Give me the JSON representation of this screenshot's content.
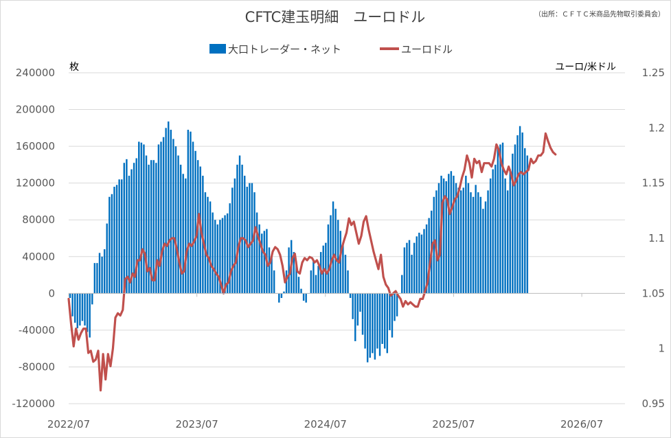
{
  "chart_data": {
    "type": "bar",
    "title": "CFTC建玉明細　ユーロドル",
    "source": "（出所：ＣＦＴＣ米商品先物取引委員会）",
    "left_unit": "枚",
    "right_unit": "ユーロ/米ドル",
    "grid": true,
    "legend_position": "top",
    "y_left": {
      "min": -120000,
      "max": 240000,
      "ticks": [
        240000,
        200000,
        160000,
        120000,
        80000,
        40000,
        0,
        -40000,
        -80000,
        -120000
      ],
      "tick_labels": [
        "240000",
        "200000",
        "160000",
        "120000",
        "80000",
        "40000",
        "0",
        "-40000",
        "-80000",
        "-120000"
      ]
    },
    "y_right": {
      "min": 0.95,
      "max": 1.25,
      "ticks": [
        1.25,
        1.2,
        1.15,
        1.1,
        1.05,
        1,
        0.95
      ],
      "tick_labels": [
        "1.25",
        "1.2",
        "1.15",
        "1.1",
        "1.05",
        "1",
        "0.95"
      ]
    },
    "x_axis": {
      "start": "2022-07",
      "end": "2026-11",
      "tick_labels": [
        "2022/07",
        "2023/07",
        "2024/07",
        "2025/07",
        "2026/07"
      ]
    },
    "colors": {
      "bars": "#0070C0",
      "line": "#C0504D",
      "grid": "#D9D9D9"
    },
    "series": [
      {
        "name": "大口トレーダー・ネット",
        "kind": "bar",
        "axis": "left",
        "start": "2022-07-05",
        "interval_days": 7,
        "values": [
          -5000,
          -25000,
          -32000,
          -38000,
          -35000,
          -30000,
          -35000,
          -42000,
          -48000,
          -12000,
          33000,
          33000,
          44000,
          40000,
          48000,
          76000,
          105000,
          108000,
          116000,
          118000,
          124000,
          124000,
          142000,
          146000,
          128000,
          135000,
          142000,
          147000,
          165000,
          164000,
          162000,
          150000,
          140000,
          145000,
          145000,
          142000,
          162000,
          165000,
          170000,
          180000,
          187000,
          178000,
          168000,
          160000,
          150000,
          140000,
          130000,
          125000,
          178000,
          176000,
          165000,
          155000,
          145000,
          138000,
          128000,
          110000,
          105000,
          100000,
          88000,
          80000,
          75000,
          80000,
          82000,
          85000,
          87000,
          98000,
          115000,
          125000,
          140000,
          150000,
          140000,
          128000,
          116000,
          120000,
          120000,
          110000,
          88000,
          75000,
          65000,
          68000,
          70000,
          50000,
          40000,
          25000,
          0,
          -10000,
          -5000,
          2000,
          25000,
          50000,
          58000,
          45000,
          35000,
          18000,
          5000,
          -8000,
          -10000,
          0,
          25000,
          35000,
          20000,
          30000,
          45000,
          52000,
          55000,
          75000,
          85000,
          100000,
          92000,
          80000,
          68000,
          55000,
          42000,
          25000,
          -5000,
          -28000,
          -52000,
          -35000,
          -20000,
          -45000,
          -60000,
          -75000,
          -70000,
          -65000,
          -72000,
          -60000,
          -68000,
          -55000,
          -60000,
          -65000,
          -40000,
          -48000,
          -30000,
          -25000,
          0,
          20000,
          50000,
          55000,
          58000,
          42000,
          55000,
          62000,
          66000,
          64000,
          70000,
          75000,
          82000,
          90000,
          105000,
          112000,
          120000,
          128000,
          125000,
          122000,
          130000,
          133000,
          128000,
          120000,
          115000,
          112000,
          115000,
          128000,
          120000,
          110000,
          105000,
          118000,
          110000,
          105000,
          92000,
          100000,
          112000,
          125000,
          135000,
          140000,
          158000,
          162000,
          164000,
          125000,
          112000,
          135000,
          152000,
          162000,
          172000,
          182000,
          175000,
          158000,
          150000
        ]
      },
      {
        "name": "ユーロドル",
        "kind": "line",
        "axis": "right",
        "start": "2022-07-01",
        "interval_days": 7,
        "values": [
          1.045,
          1.022,
          1.002,
          1.018,
          1.008,
          1.014,
          1.018,
          1.018,
          0.996,
          0.998,
          0.988,
          0.99,
          0.998,
          0.962,
          0.995,
          0.972,
          0.995,
          0.984,
          1.0,
          1.028,
          1.032,
          1.03,
          1.035,
          1.063,
          1.065,
          1.06,
          1.068,
          1.065,
          1.08,
          1.08,
          1.09,
          1.086,
          1.07,
          1.073,
          1.062,
          1.062,
          1.08,
          1.075,
          1.088,
          1.095,
          1.093,
          1.098,
          1.1,
          1.1,
          1.09,
          1.078,
          1.068,
          1.07,
          1.088,
          1.095,
          1.093,
          1.097,
          1.102,
          1.122,
          1.105,
          1.095,
          1.085,
          1.082,
          1.075,
          1.072,
          1.068,
          1.065,
          1.058,
          1.05,
          1.058,
          1.06,
          1.07,
          1.075,
          1.078,
          1.092,
          1.1,
          1.1,
          1.098,
          1.092,
          1.095,
          1.098,
          1.11,
          1.102,
          1.095,
          1.088,
          1.085,
          1.075,
          1.078,
          1.088,
          1.092,
          1.09,
          1.085,
          1.075,
          1.06,
          1.065,
          1.068,
          1.082,
          1.086,
          1.07,
          1.068,
          1.078,
          1.082,
          1.08,
          1.083,
          1.082,
          1.078,
          1.08,
          1.075,
          1.068,
          1.072,
          1.068,
          1.072,
          1.08,
          1.085,
          1.08,
          1.078,
          1.09,
          1.098,
          1.105,
          1.118,
          1.112,
          1.115,
          1.105,
          1.095,
          1.102,
          1.115,
          1.12,
          1.108,
          1.098,
          1.088,
          1.08,
          1.072,
          1.085,
          1.065,
          1.058,
          1.055,
          1.048,
          1.05,
          1.052,
          1.048,
          1.045,
          1.038,
          1.043,
          1.04,
          1.042,
          1.04,
          1.038,
          1.038,
          1.045,
          1.045,
          1.052,
          1.06,
          1.078,
          1.095,
          1.098,
          1.08,
          1.085,
          1.132,
          1.138,
          1.135,
          1.122,
          1.128,
          1.135,
          1.138,
          1.145,
          1.155,
          1.162,
          1.175,
          1.168,
          1.155,
          1.172,
          1.168,
          1.17,
          1.16,
          1.168,
          1.168,
          1.168,
          1.165,
          1.172,
          1.185,
          1.18,
          1.168,
          1.162,
          1.158,
          1.165,
          1.158,
          1.148,
          1.152,
          1.158,
          1.16,
          1.158,
          1.16,
          1.162,
          1.172,
          1.168,
          1.17,
          1.175,
          1.175,
          1.178,
          1.195,
          1.188,
          1.182,
          1.178,
          1.176
        ]
      }
    ]
  }
}
